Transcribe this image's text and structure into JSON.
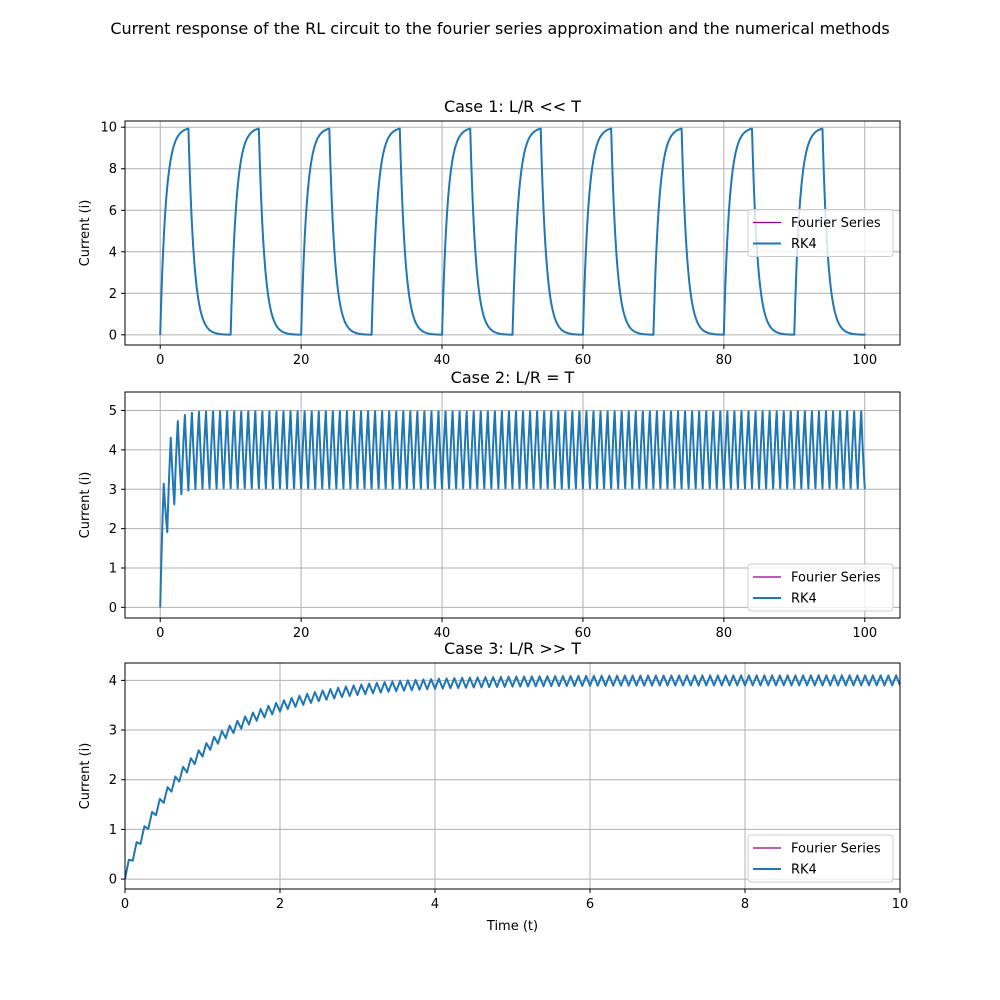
{
  "figure_title": "Current response of the RL circuit to the fourier series approximation and the numerical methods",
  "colors": {
    "fourier": "#8b008b",
    "rk4": "#1f77b4",
    "grid": "#b0b0b0"
  },
  "chart_data": [
    {
      "type": "line",
      "title": "Case 1: L/R << T",
      "xlabel": "",
      "ylabel": "Current (i)",
      "xlim": [
        -5,
        105
      ],
      "ylim": [
        -0.49,
        10.3
      ],
      "xticks": [
        0,
        20,
        40,
        60,
        80,
        100
      ],
      "yticks": [
        0,
        2,
        4,
        6,
        8,
        10
      ],
      "grid": true,
      "legend": "center right",
      "series": [
        {
          "name": "Fourier Series",
          "color": "#8b008b"
        },
        {
          "name": "RK4",
          "color": "#1f77b4"
        }
      ],
      "signal": {
        "model": "rl_square",
        "period": 10,
        "duty": 0.4,
        "tau": 0.8,
        "amplitude": 10,
        "t_start": 0,
        "t_end": 100
      }
    },
    {
      "type": "line",
      "title": "Case 2: L/R = T",
      "xlabel": "",
      "ylabel": "Current (i)",
      "xlim": [
        -5,
        105
      ],
      "ylim": [
        -0.27,
        5.47
      ],
      "xticks": [
        0,
        20,
        40,
        60,
        80,
        100
      ],
      "yticks": [
        0,
        1,
        2,
        3,
        4,
        5
      ],
      "grid": true,
      "legend": "lower right",
      "series": [
        {
          "name": "Fourier Series",
          "color": "#8b008b"
        },
        {
          "name": "RK4",
          "color": "#1f77b4"
        }
      ],
      "signal": {
        "model": "rl_square",
        "period": 1,
        "duty": 0.5,
        "tau": 1,
        "amplitude": 8,
        "t_start": 0,
        "t_end": 100
      }
    },
    {
      "type": "line",
      "title": "Case 3: L/R >> T",
      "xlabel": "Time (t)",
      "ylabel": "Current (i)",
      "xlim": [
        0,
        10
      ],
      "ylim": [
        -0.2,
        4.35
      ],
      "xticks": [
        0,
        2,
        4,
        6,
        8,
        10
      ],
      "yticks": [
        0,
        1,
        2,
        3,
        4
      ],
      "grid": true,
      "legend": "lower right",
      "series": [
        {
          "name": "Fourier Series",
          "color": "#8b008b"
        },
        {
          "name": "RK4",
          "color": "#1f77b4"
        }
      ],
      "signal": {
        "model": "rl_square",
        "period": 0.1,
        "duty": 0.5,
        "tau": 1,
        "amplitude": 8,
        "t_start": 0,
        "t_end": 10
      }
    }
  ]
}
